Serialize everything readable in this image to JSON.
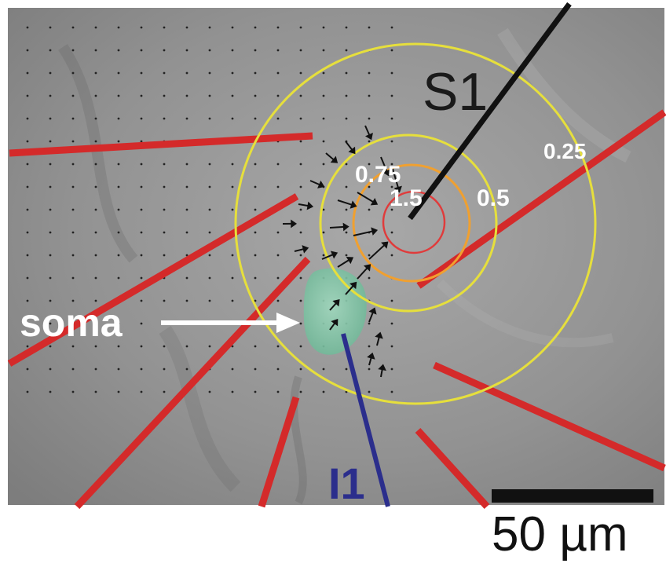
{
  "labels": {
    "stim_electrode": "S1",
    "injection_electrode": "I1",
    "soma": "soma",
    "contour_1": "1.5",
    "contour_2": "0.75",
    "contour_3": "0.5",
    "contour_4": "0.25",
    "scale_bar": "50 µm"
  },
  "colors": {
    "background_tissue": "#8f8f8f",
    "red_line": "#d42a2a",
    "stim_electrode": "#111111",
    "injection_electrode": "#2b2e8c",
    "soma": "#7cc4a4",
    "contour_red": "#e03b3b",
    "contour_orange": "#f0a030",
    "contour_yellow": "#e6df3c",
    "arrow": "#111111"
  }
}
